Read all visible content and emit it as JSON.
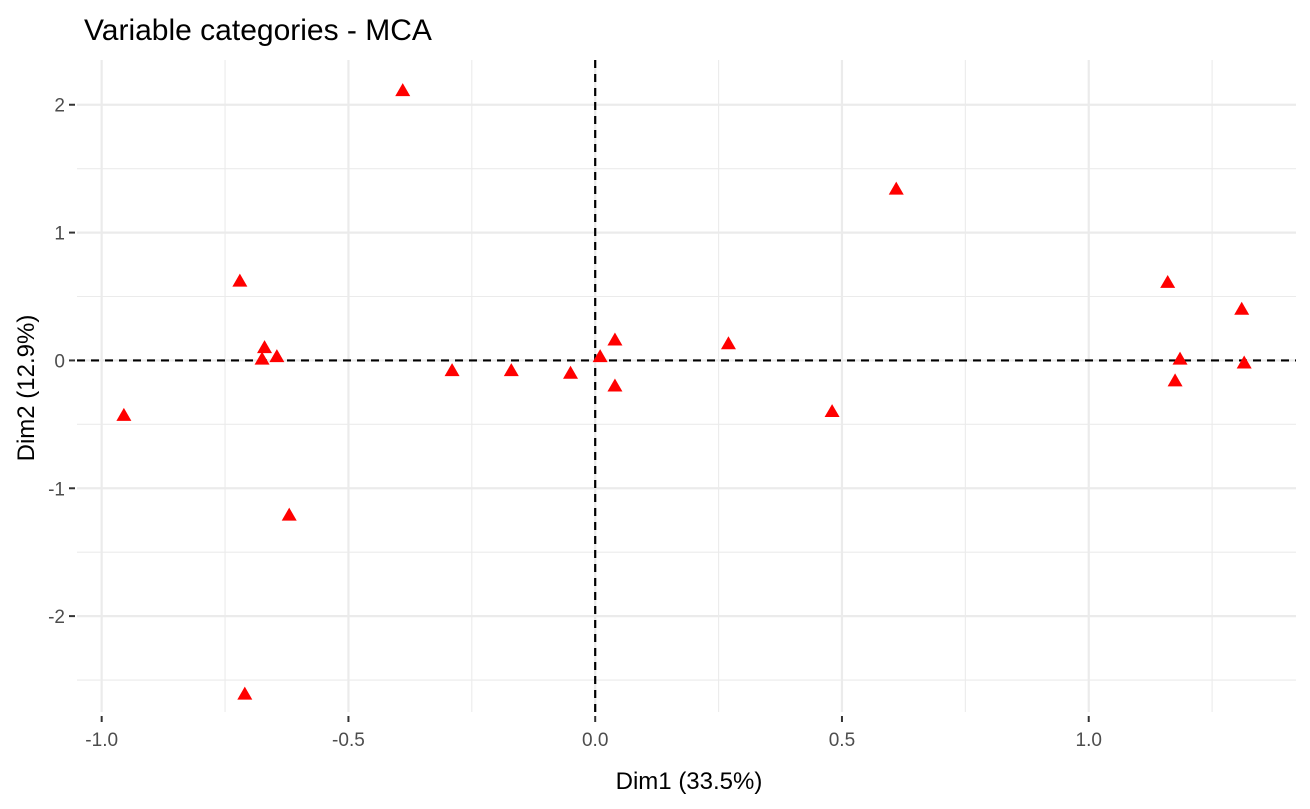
{
  "chart_data": {
    "type": "scatter",
    "title": "Variable categories - MCA",
    "xlabel": "Dim1 (33.5%)",
    "ylabel": "Dim2 (12.9%)",
    "xlim": [
      -1.05,
      1.42
    ],
    "ylim": [
      -2.75,
      2.35
    ],
    "x_ticks": [
      -1.0,
      -0.5,
      0.0,
      0.5,
      1.0
    ],
    "x_tick_labels": [
      "-1.0",
      "-0.5",
      "0.0",
      "0.5",
      "1.0"
    ],
    "x_minor_ticks": [
      -0.75,
      -0.25,
      0.25,
      0.75,
      1.25
    ],
    "y_ticks": [
      -2,
      -1,
      0,
      1,
      2
    ],
    "y_tick_labels": [
      "-2",
      "-1",
      "0",
      "1",
      "2"
    ],
    "y_minor_ticks": [
      -2.5,
      -1.5,
      -0.5,
      0.5,
      1.5
    ],
    "reference_lines": {
      "x": 0,
      "y": 0
    },
    "grid": true,
    "point_color": "#ff0000",
    "marker": "triangle",
    "points": [
      {
        "x": -0.955,
        "y": -0.43
      },
      {
        "x": -0.72,
        "y": 0.62
      },
      {
        "x": -0.71,
        "y": -2.61
      },
      {
        "x": -0.67,
        "y": 0.1
      },
      {
        "x": -0.675,
        "y": 0.01
      },
      {
        "x": -0.645,
        "y": 0.03
      },
      {
        "x": -0.62,
        "y": -1.21
      },
      {
        "x": -0.39,
        "y": 2.11
      },
      {
        "x": -0.29,
        "y": -0.08
      },
      {
        "x": -0.17,
        "y": -0.08
      },
      {
        "x": -0.05,
        "y": -0.1
      },
      {
        "x": 0.01,
        "y": 0.03
      },
      {
        "x": 0.04,
        "y": 0.16
      },
      {
        "x": 0.04,
        "y": -0.2
      },
      {
        "x": 0.27,
        "y": 0.13
      },
      {
        "x": 0.48,
        "y": -0.4
      },
      {
        "x": 0.61,
        "y": 1.34
      },
      {
        "x": 1.16,
        "y": 0.61
      },
      {
        "x": 1.175,
        "y": -0.16
      },
      {
        "x": 1.185,
        "y": 0.01
      },
      {
        "x": 1.31,
        "y": 0.4
      },
      {
        "x": 1.315,
        "y": -0.02
      }
    ]
  }
}
